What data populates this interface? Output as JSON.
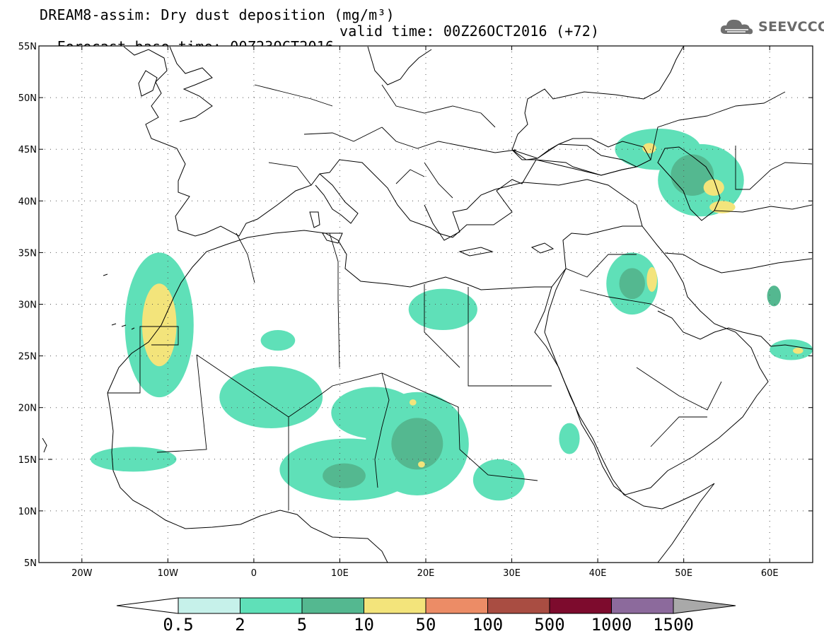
{
  "title": {
    "line1": "DREAM8-assim: Dry dust deposition (mg/m³)",
    "forecast_base": "Forecast base time: 00Z23OCT2016",
    "valid": "valid time: 00Z26OCT2016 (+72)"
  },
  "logo": {
    "text": "SEEVCCC",
    "icon": "cloud-logo-icon"
  },
  "map": {
    "extent": {
      "lon": [
        -25,
        65
      ],
      "lat": [
        5,
        55
      ]
    },
    "lat_labels": [
      "55N",
      "50N",
      "45N",
      "40N",
      "35N",
      "30N",
      "25N",
      "20N",
      "15N",
      "10N",
      "5N"
    ],
    "lat_values": [
      55,
      50,
      45,
      40,
      35,
      30,
      25,
      20,
      15,
      10,
      5
    ],
    "lon_labels": [
      "20W",
      "10W",
      "0",
      "10E",
      "20E",
      "30E",
      "40E",
      "50E",
      "60E"
    ],
    "lon_values": [
      -20,
      -10,
      0,
      10,
      20,
      30,
      40,
      50,
      60
    ]
  },
  "colorbar": {
    "labels": [
      "0.5",
      "2",
      "5",
      "10",
      "50",
      "100",
      "500",
      "1000",
      "1500"
    ],
    "colors": [
      "#c6f1ea",
      "#5fe0b8",
      "#54b890",
      "#f3e47b",
      "#ec8c66",
      "#a94d42",
      "#7d0b2d",
      "#8c6a9c",
      "#a9a9a9"
    ],
    "under_color": "#ffffff"
  },
  "chart_data": {
    "type": "heatmap",
    "title": "DREAM8-assim: Dry dust deposition (mg/m³)",
    "units": "mg/m³",
    "lon_range": [
      -25,
      65
    ],
    "lat_range": [
      5,
      55
    ],
    "levels": [
      0.5,
      2,
      5,
      10,
      50,
      100,
      500,
      1000,
      1500
    ],
    "regions": [
      {
        "lon": -11,
        "lat": 28,
        "rlon": 2,
        "rlat": 4,
        "level": 3
      },
      {
        "lon": -11,
        "lat": 28,
        "rlon": 4,
        "rlat": 7,
        "level": 1
      },
      {
        "lon": 2,
        "lat": 21,
        "rlon": 6,
        "rlat": 3,
        "level": 1
      },
      {
        "lon": 11,
        "lat": 14,
        "rlon": 8,
        "rlat": 3,
        "level": 1
      },
      {
        "lon": 10.5,
        "lat": 13.4,
        "rlon": 2.5,
        "rlat": 1.2,
        "level": 2
      },
      {
        "lon": 19,
        "lat": 16.5,
        "rlon": 6,
        "rlat": 5,
        "level": 1
      },
      {
        "lon": 19,
        "lat": 16.5,
        "rlon": 3,
        "rlat": 2.5,
        "level": 2
      },
      {
        "lon": 14,
        "lat": 19.5,
        "rlon": 5,
        "rlat": 2.5,
        "level": 1
      },
      {
        "lon": 22,
        "lat": 29.5,
        "rlon": 4,
        "rlat": 2,
        "level": 1
      },
      {
        "lon": 44,
        "lat": 32,
        "rlon": 3,
        "rlat": 3,
        "level": 1
      },
      {
        "lon": 44,
        "lat": 32,
        "rlon": 1.5,
        "rlat": 1.5,
        "level": 2
      },
      {
        "lon": 46.3,
        "lat": 32.4,
        "rlon": 0.6,
        "rlat": 1.2,
        "level": 3
      },
      {
        "lon": 47,
        "lat": 45,
        "rlon": 5,
        "rlat": 2,
        "level": 1
      },
      {
        "lon": 52,
        "lat": 42,
        "rlon": 5,
        "rlat": 3.5,
        "level": 1
      },
      {
        "lon": 51,
        "lat": 42.5,
        "rlon": 2.5,
        "rlat": 2,
        "level": 2
      },
      {
        "lon": 53.5,
        "lat": 41.3,
        "rlon": 1.2,
        "rlat": 0.8,
        "level": 3
      },
      {
        "lon": 54.5,
        "lat": 39.4,
        "rlon": 1.5,
        "rlat": 0.6,
        "level": 3
      },
      {
        "lon": 46,
        "lat": 45.1,
        "rlon": 0.8,
        "rlat": 0.5,
        "level": 3
      },
      {
        "lon": 62.5,
        "lat": 25.6,
        "rlon": 2.5,
        "rlat": 1,
        "level": 1
      },
      {
        "lon": 63.3,
        "lat": 25.5,
        "rlon": 0.6,
        "rlat": 0.3,
        "level": 3
      },
      {
        "lon": 60.5,
        "lat": 30.8,
        "rlon": 0.8,
        "rlat": 1,
        "level": 2
      },
      {
        "lon": 28.5,
        "lat": 13,
        "rlon": 3,
        "rlat": 2,
        "level": 1
      },
      {
        "lon": 36.7,
        "lat": 17,
        "rlon": 1.2,
        "rlat": 1.5,
        "level": 1
      },
      {
        "lon": -14,
        "lat": 15,
        "rlon": 5,
        "rlat": 1.2,
        "level": 1
      },
      {
        "lon": 19.5,
        "lat": 14.5,
        "rlon": 0.4,
        "rlat": 0.3,
        "level": 3
      },
      {
        "lon": 18.5,
        "lat": 20.5,
        "rlon": 0.4,
        "rlat": 0.3,
        "level": 3
      },
      {
        "lon": 2.8,
        "lat": 26.5,
        "rlon": 2,
        "rlat": 1,
        "level": 1
      }
    ]
  }
}
